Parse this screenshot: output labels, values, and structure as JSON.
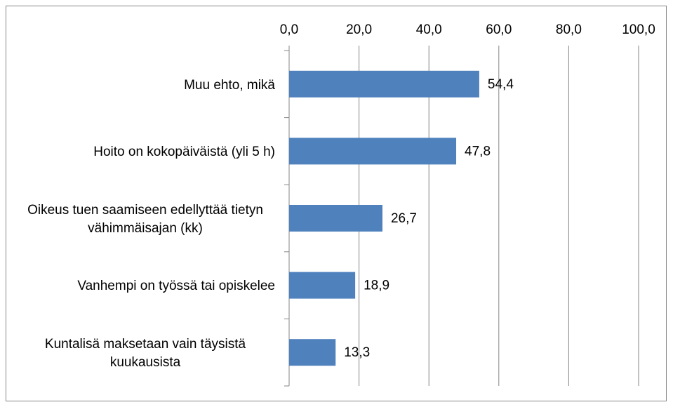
{
  "chart_data": {
    "type": "bar",
    "orientation": "horizontal",
    "categories": [
      "Muu ehto, mikä",
      "Hoito on kokopäiväistä (yli 5 h)",
      "Oikeus tuen saamiseen edellyttää tietyn vähimmäisajan (kk)",
      "Vanhempi on työssä tai opiskelee",
      "Kuntalisä maksetaan vain täysistä kuukausista"
    ],
    "values": [
      54.4,
      47.8,
      26.7,
      18.9,
      13.3
    ],
    "value_labels": [
      "54,4",
      "47,8",
      "26,7",
      "18,9",
      "13,3"
    ],
    "color": "#4f81bd",
    "xlim": [
      0,
      100
    ],
    "xticks": [
      {
        "value": 0,
        "label": "0,0"
      },
      {
        "value": 20,
        "label": "20,0"
      },
      {
        "value": 40,
        "label": "40,0"
      },
      {
        "value": 60,
        "label": "60,0"
      },
      {
        "value": 80,
        "label": "80,0"
      },
      {
        "value": 100,
        "label": "100,0"
      }
    ],
    "grid": true
  }
}
